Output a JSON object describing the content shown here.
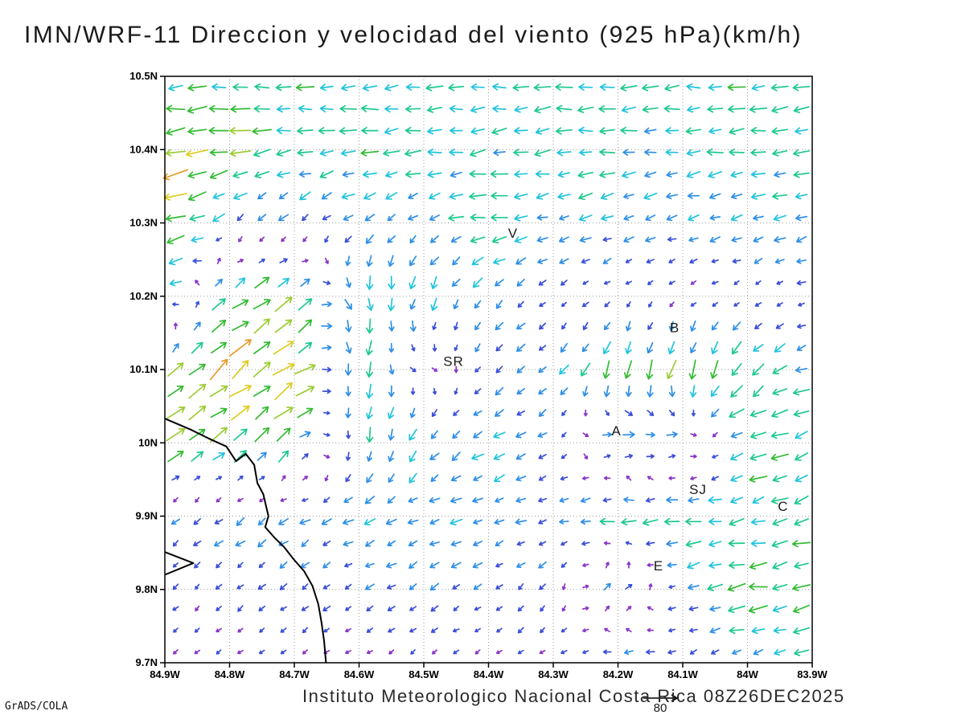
{
  "title": "IMN/WRF-11 Direccion y velocidad del viento (925 hPa)(km/h)",
  "footer": {
    "institute_line": "Instituto Meteorologico Nacional Costa Rica 08Z26DEC2025",
    "credit": "GrADS/COLA"
  },
  "chart_data": {
    "type": "vector_field",
    "title": "IMN/WRF-11 Direccion y velocidad del viento (925 hPa)(km/h)",
    "model": "IMN/WRF-11",
    "level": "925 hPa",
    "units": "km/h",
    "valid_time": "08Z26DEC2025",
    "grid": "dotted",
    "legend_position": "bottom-center",
    "x_axis": {
      "ticks": [
        "84.9W",
        "84.8W",
        "84.7W",
        "84.6W",
        "84.5W",
        "84.4W",
        "84.3W",
        "84.2W",
        "84.1W",
        "84W",
        "83.9W"
      ],
      "lon_values": [
        -84.9,
        -84.8,
        -84.7,
        -84.6,
        -84.5,
        -84.4,
        -84.3,
        -84.2,
        -84.1,
        -84.0,
        -83.9
      ],
      "range": [
        -84.9,
        -83.9
      ]
    },
    "y_axis": {
      "ticks": [
        "10.5N",
        "10.4N",
        "10.3N",
        "10.2N",
        "10.1N",
        "10N",
        "9.9N",
        "9.8N",
        "9.7N"
      ],
      "lat_values": [
        10.5,
        10.4,
        10.3,
        10.2,
        10.1,
        10.0,
        9.9,
        9.8,
        9.7
      ],
      "range": [
        9.7,
        10.5
      ]
    },
    "reference_vector": {
      "speed": 80,
      "label": "80"
    },
    "speed_colors": [
      {
        "max": 12,
        "color": "#8a35c8"
      },
      {
        "max": 20,
        "color": "#3a4fd8"
      },
      {
        "max": 27,
        "color": "#2f8fe6"
      },
      {
        "max": 33,
        "color": "#22c4dc"
      },
      {
        "max": 40,
        "color": "#1fc98c"
      },
      {
        "max": 46,
        "color": "#33bb33"
      },
      {
        "max": 52,
        "color": "#9ccc33"
      },
      {
        "max": 58,
        "color": "#ddcc22"
      },
      {
        "max": 65,
        "color": "#e69a28"
      },
      {
        "max": 73,
        "color": "#e0482a"
      },
      {
        "max": 999,
        "color": "#e02878"
      }
    ],
    "stations": [
      {
        "label": "V",
        "lon": -84.37,
        "lat": 10.28
      },
      {
        "label": "B",
        "lon": -84.12,
        "lat": 10.151
      },
      {
        "label": "SR",
        "lon": -84.47,
        "lat": 10.105
      },
      {
        "label": "A",
        "lon": -84.21,
        "lat": 10.01
      },
      {
        "label": "SJ",
        "lon": -84.09,
        "lat": 9.93
      },
      {
        "label": "C",
        "lon": -83.953,
        "lat": 9.907
      },
      {
        "label": "E",
        "lon": -84.145,
        "lat": 9.826
      }
    ],
    "coastline": [
      [
        [
          -84.9,
          10.033
        ],
        [
          -84.86,
          10.018
        ],
        [
          -84.83,
          10.005
        ],
        [
          -84.805,
          9.995
        ],
        [
          -84.79,
          9.975
        ],
        [
          -84.775,
          9.985
        ],
        [
          -84.762,
          9.97
        ],
        [
          -84.757,
          9.945
        ],
        [
          -84.748,
          9.93
        ],
        [
          -84.74,
          9.9
        ],
        [
          -84.745,
          9.885
        ],
        [
          -84.73,
          9.87
        ],
        [
          -84.716,
          9.858
        ],
        [
          -84.7,
          9.84
        ],
        [
          -84.685,
          9.825
        ],
        [
          -84.672,
          9.805
        ],
        [
          -84.663,
          9.78
        ],
        [
          -84.658,
          9.755
        ],
        [
          -84.654,
          9.73
        ],
        [
          -84.651,
          9.7
        ]
      ],
      [
        [
          -84.9,
          9.851
        ],
        [
          -84.856,
          9.836
        ],
        [
          -84.9,
          9.82
        ]
      ]
    ],
    "wind_grid": {
      "comment": "coarse sampled wind field read from plot, u east+ v north+ in km/h, rows lat 9.7N..10.5N, cols 84.9W..83.9W",
      "lats": [
        9.7,
        9.8,
        9.9,
        10.0,
        10.1,
        10.2,
        10.3,
        10.4,
        10.5
      ],
      "lons": [
        -84.9,
        -84.8,
        -84.7,
        -84.6,
        -84.5,
        -84.4,
        -84.3,
        -84.2,
        -84.1,
        -84.0,
        -83.9
      ],
      "u": [
        [
          -8,
          -8,
          -10,
          -8,
          -8,
          -10,
          -12,
          -28,
          -12,
          -20,
          -30
        ],
        [
          -10,
          -12,
          -14,
          -16,
          -18,
          -16,
          -10,
          25,
          -20,
          -45,
          -35
        ],
        [
          -15,
          -18,
          -20,
          -22,
          -25,
          -22,
          -20,
          -35,
          -35,
          -30,
          -35
        ],
        [
          40,
          38,
          30,
          -5,
          -15,
          -25,
          -15,
          30,
          25,
          -40,
          -35
        ],
        [
          30,
          45,
          48,
          -10,
          12,
          -15,
          -18,
          -10,
          -12,
          -25,
          -30
        ],
        [
          -30,
          35,
          40,
          5,
          -10,
          -15,
          -12,
          -8,
          -8,
          -10,
          -15
        ],
        [
          -60,
          -15,
          -15,
          -20,
          -18,
          -40,
          -25,
          -25,
          -22,
          -25,
          -25
        ],
        [
          -55,
          -45,
          -35,
          -35,
          -35,
          -32,
          -32,
          -32,
          -32,
          -33,
          -35
        ],
        [
          -38,
          -36,
          -35,
          -34,
          -34,
          -34,
          -34,
          -34,
          -34,
          -35,
          -36
        ]
      ],
      "v": [
        [
          -5,
          -6,
          -6,
          -5,
          -6,
          -6,
          -4,
          -4,
          -6,
          -8,
          -10
        ],
        [
          -10,
          -10,
          -12,
          -10,
          -12,
          -10,
          -15,
          18,
          -10,
          -5,
          -8
        ],
        [
          -12,
          -14,
          -12,
          -10,
          -8,
          -8,
          -6,
          -5,
          -5,
          -8,
          -12
        ],
        [
          30,
          28,
          25,
          -30,
          -25,
          -10,
          -10,
          8,
          5,
          -15,
          -10
        ],
        [
          25,
          35,
          38,
          -35,
          -5,
          -15,
          -15,
          -40,
          -40,
          -30,
          -8
        ],
        [
          -5,
          28,
          32,
          -35,
          -30,
          -18,
          -10,
          -6,
          -5,
          -6,
          -6
        ],
        [
          -18,
          -15,
          -15,
          -15,
          -12,
          -5,
          -8,
          -8,
          -6,
          -8,
          -8
        ],
        [
          -8,
          -6,
          -5,
          -5,
          -5,
          -4,
          -4,
          -4,
          -4,
          -4,
          -4
        ],
        [
          0,
          -2,
          -2,
          -2,
          -2,
          -2,
          -2,
          -2,
          -2,
          -2,
          -2
        ]
      ]
    },
    "arrow_grid": {
      "nx": 30,
      "ny": 27
    }
  }
}
